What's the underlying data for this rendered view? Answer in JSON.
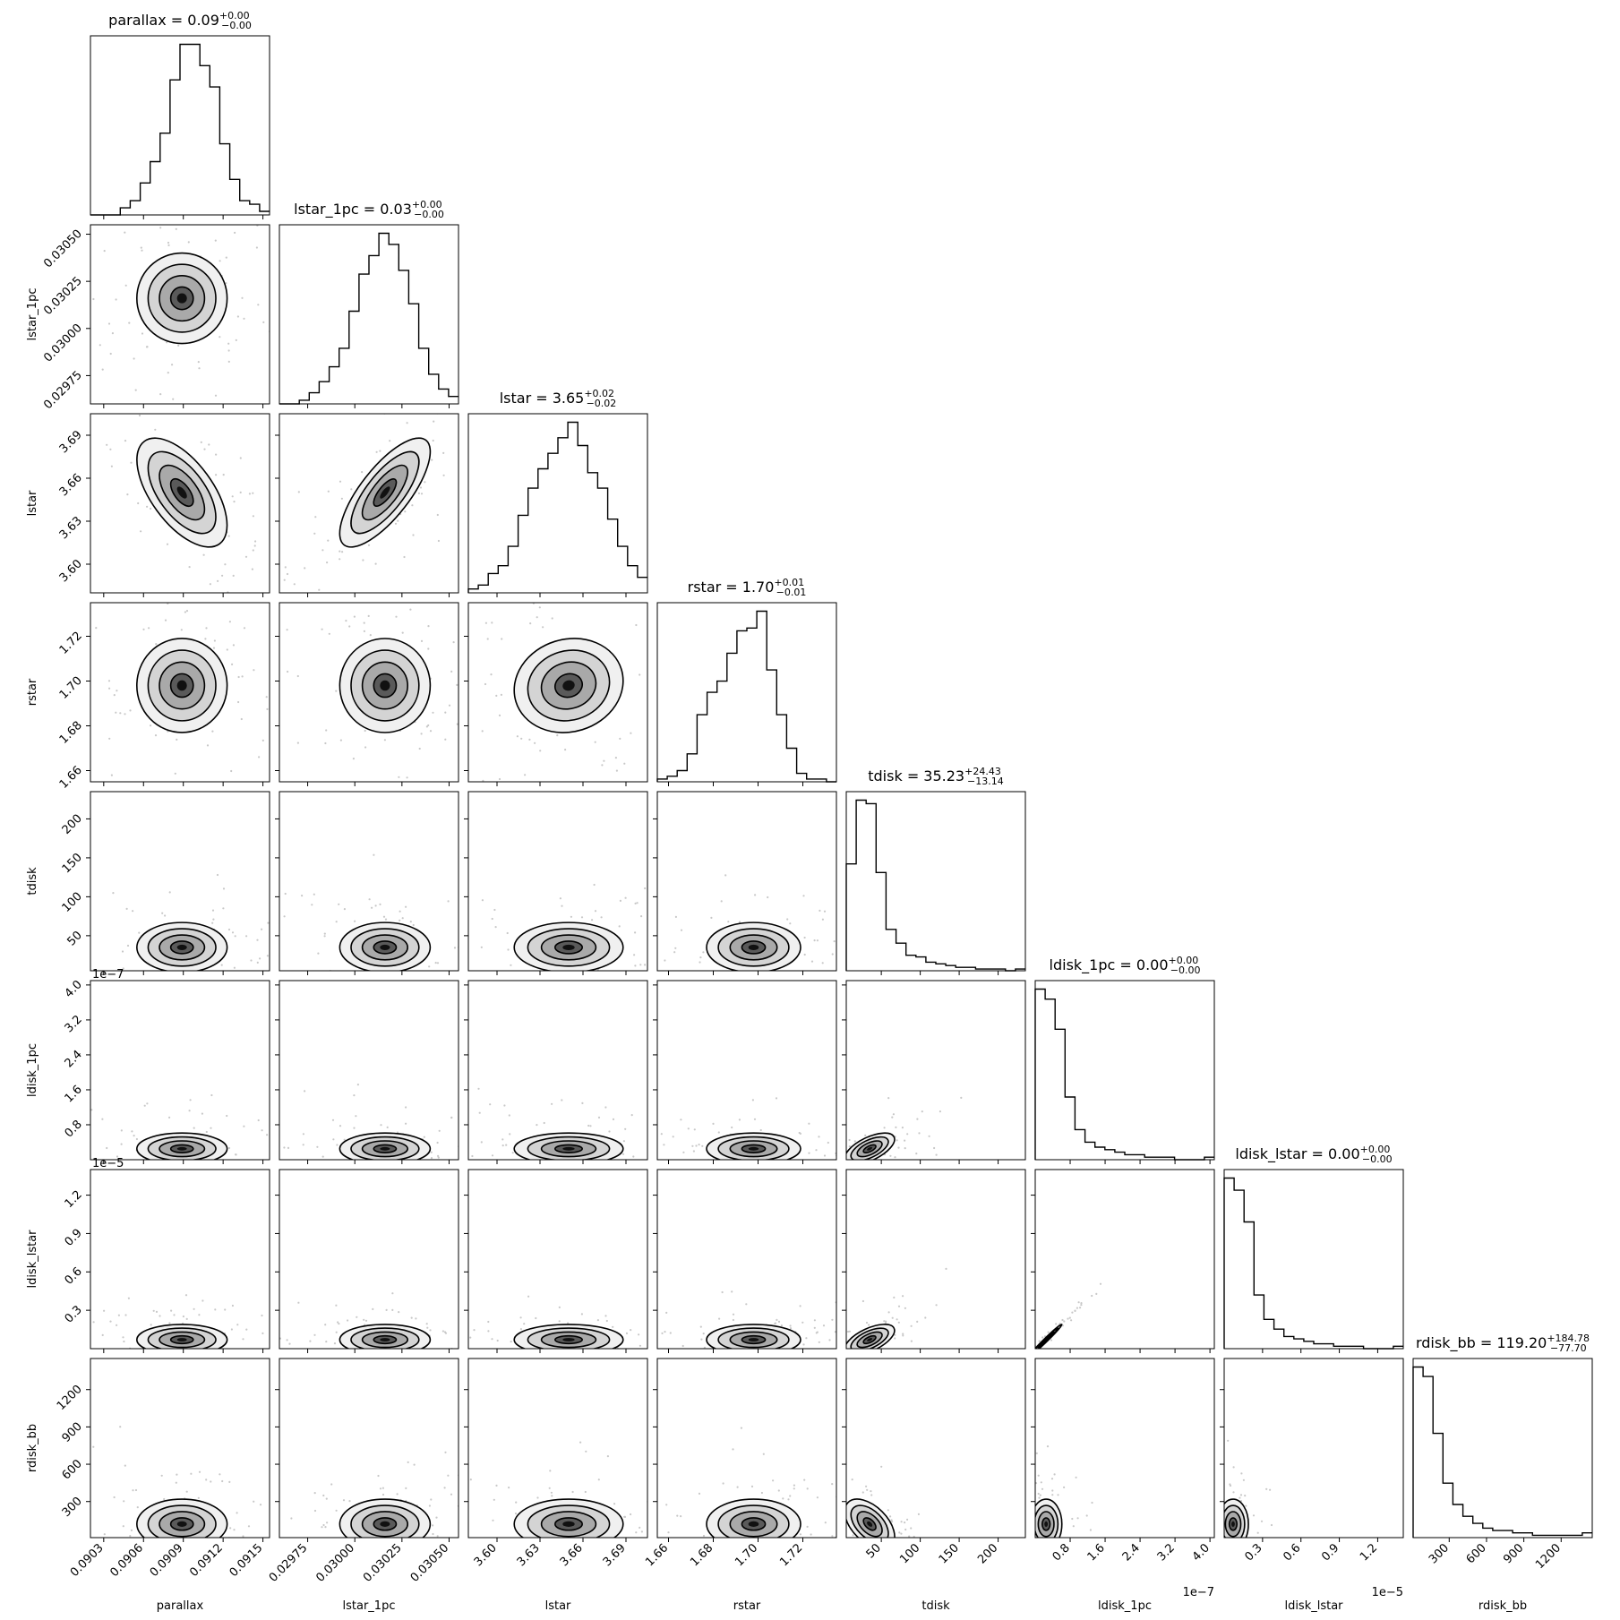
{
  "chart_data": {
    "type": "corner",
    "parameters": [
      {
        "name": "parallax",
        "axis_label": "parallax",
        "range": [
          0.0902,
          0.09155
        ],
        "ticks": [
          0.0903,
          0.0906,
          0.0909,
          0.0912,
          0.0915
        ],
        "tick_labels": [
          "0.0903",
          "0.0906",
          "0.0909",
          "0.0912",
          "0.0915"
        ],
        "offset_text": "",
        "median": 0.09089,
        "sigma": 0.00017,
        "skew": 0,
        "title_main": "parallax = 0.09",
        "title_sup": "+0.00",
        "title_sub": "−0.00",
        "hist": [
          0,
          0,
          0,
          2,
          4,
          9,
          15,
          23,
          38,
          48,
          48,
          42,
          36,
          20,
          10,
          4,
          3,
          1
        ]
      },
      {
        "name": "lstar_1pc",
        "axis_label": "lstar_1pc",
        "range": [
          0.0296,
          0.03055
        ],
        "ticks": [
          0.02975,
          0.03,
          0.03025,
          0.0305
        ],
        "tick_labels": [
          "0.02975",
          "0.03000",
          "0.03025",
          "0.03050"
        ],
        "offset_text": "",
        "median": 0.03016,
        "sigma": 0.00012,
        "skew": 0,
        "title_main": "lstar_1pc = 0.03",
        "title_sup": "+0.00",
        "title_sub": "−0.00",
        "hist": [
          0,
          0,
          1,
          3,
          6,
          10,
          15,
          25,
          35,
          40,
          46,
          43,
          36,
          27,
          15,
          8,
          4,
          2
        ]
      },
      {
        "name": "lstar",
        "axis_label": "lstar",
        "range": [
          3.58,
          3.705
        ],
        "ticks": [
          3.6,
          3.63,
          3.66,
          3.69
        ],
        "tick_labels": [
          "3.60",
          "3.63",
          "3.66",
          "3.69"
        ],
        "offset_text": "",
        "median": 3.65,
        "sigma": 0.019,
        "skew": 0,
        "title_main": "lstar = 3.65",
        "title_sup": "+0.02",
        "title_sub": "−0.02",
        "hist": [
          1,
          2,
          5,
          7,
          12,
          20,
          27,
          32,
          36,
          40,
          44,
          38,
          31,
          27,
          19,
          12,
          7,
          4
        ]
      },
      {
        "name": "rstar",
        "axis_label": "rstar",
        "range": [
          1.655,
          1.735
        ],
        "ticks": [
          1.66,
          1.68,
          1.7,
          1.72
        ],
        "tick_labels": [
          "1.66",
          "1.68",
          "1.70",
          "1.72"
        ],
        "offset_text": "",
        "median": 1.698,
        "sigma": 0.0105,
        "skew": 0,
        "title_main": "rstar = 1.70",
        "title_sup": "+0.01",
        "title_sub": "−0.01",
        "hist": [
          1,
          2,
          4,
          10,
          24,
          32,
          36,
          46,
          54,
          55,
          61,
          40,
          24,
          12,
          3,
          1,
          1,
          0
        ]
      },
      {
        "name": "tdisk",
        "axis_label": "tdisk",
        "range": [
          5,
          235
        ],
        "ticks": [
          50,
          100,
          150,
          200
        ],
        "tick_labels": [
          "50",
          "100",
          "150",
          "200"
        ],
        "offset_text": "",
        "median": 35,
        "sigma": 16,
        "skew": 1.4,
        "title_main": "tdisk = 35.23",
        "title_sup": "+24.43",
        "title_sub": "−13.14",
        "hist": [
          62,
          99,
          97,
          57,
          24,
          16,
          9,
          8,
          5,
          4,
          3,
          2,
          2,
          1,
          1,
          1,
          0,
          1
        ]
      },
      {
        "name": "ldisk_1pc",
        "axis_label": "ldisk_1pc",
        "range": [
          0.0,
          4.1
        ],
        "ticks": [
          0.8,
          1.6,
          2.4,
          3.2,
          4.0
        ],
        "tick_labels": [
          "0.8",
          "1.6",
          "2.4",
          "3.2",
          "4.0"
        ],
        "offset_text": "1e−7",
        "median": 0.25,
        "sigma": 0.18,
        "skew": 2.5,
        "title_main": "ldisk_1pc = 0.00",
        "title_sup": "+0.00",
        "title_sub": "−0.00",
        "hist": [
          68,
          64,
          52,
          25,
          12,
          7,
          5,
          4,
          3,
          2,
          2,
          1,
          1,
          1,
          0,
          0,
          0,
          1
        ]
      },
      {
        "name": "ldisk_lstar",
        "axis_label": "ldisk_lstar",
        "range": [
          0.0,
          1.4
        ],
        "ticks": [
          0.3,
          0.6,
          0.9,
          1.2
        ],
        "tick_labels": [
          "0.3",
          "0.6",
          "0.9",
          "1.2"
        ],
        "offset_text": "1e−5",
        "median": 0.07,
        "sigma": 0.06,
        "skew": 2.5,
        "title_main": "ldisk_lstar = 0.00",
        "title_sup": "+0.00",
        "title_sub": "−0.00",
        "hist": [
          70,
          65,
          52,
          22,
          12,
          8,
          5,
          4,
          3,
          2,
          2,
          1,
          1,
          1,
          0,
          0,
          0,
          1
        ]
      },
      {
        "name": "rdisk_bb",
        "axis_label": "rdisk_bb",
        "range": [
          10,
          1450
        ],
        "ticks": [
          300,
          600,
          900,
          1200
        ],
        "tick_labels": [
          "300",
          "600",
          "900",
          "1200"
        ],
        "offset_text": "",
        "median": 119,
        "sigma": 100,
        "skew": 2.2,
        "title_main": "rdisk_bb = 119.20",
        "title_sup": "+184.78",
        "title_sub": "−77.70",
        "hist": [
          72,
          68,
          44,
          23,
          14,
          9,
          6,
          4,
          3,
          3,
          2,
          2,
          1,
          1,
          1,
          1,
          1,
          2
        ]
      }
    ],
    "correlations": [
      [
        1,
        0,
        -0.6,
        0,
        0,
        0,
        0,
        0
      ],
      [
        0,
        1,
        0.75,
        0,
        0,
        0,
        0,
        0
      ],
      [
        -0.6,
        0.75,
        1,
        0.1,
        0,
        0,
        0,
        0
      ],
      [
        0,
        0,
        0.1,
        1,
        0,
        0,
        0,
        0
      ],
      [
        0,
        0,
        0,
        0,
        1,
        0.6,
        0.6,
        -0.5
      ],
      [
        0,
        0,
        0,
        0,
        0.6,
        1,
        0.99,
        0
      ],
      [
        0,
        0,
        0,
        0,
        0.6,
        0.99,
        1,
        0
      ],
      [
        0,
        0,
        0,
        0,
        -0.5,
        0,
        0,
        1
      ]
    ],
    "grid": false,
    "legend": "none"
  }
}
